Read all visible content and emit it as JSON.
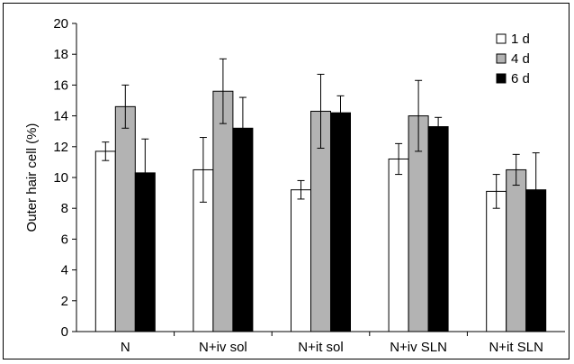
{
  "chart_data": {
    "type": "bar",
    "categories": [
      "N",
      "N+iv sol",
      "N+it sol",
      "N+iv SLN",
      "N+it SLN"
    ],
    "series": [
      {
        "name": "1 d",
        "color": "#ffffff",
        "values": [
          11.7,
          10.5,
          9.2,
          11.2,
          9.1
        ],
        "errors": [
          0.6,
          2.1,
          0.6,
          1.0,
          1.1
        ]
      },
      {
        "name": "4 d",
        "color": "#b3b3b3",
        "values": [
          14.6,
          15.6,
          14.3,
          14.0,
          10.5
        ],
        "errors": [
          1.4,
          2.1,
          2.4,
          2.3,
          1.0
        ]
      },
      {
        "name": "6 d",
        "color": "#000000",
        "values": [
          10.3,
          13.2,
          14.2,
          13.3,
          9.2
        ],
        "errors": [
          2.2,
          2.0,
          1.1,
          0.6,
          2.4
        ]
      }
    ],
    "ylabel": "Outer hair cell (%)",
    "xlabel": "",
    "ylim": [
      0,
      20
    ],
    "yticks": [
      0,
      2,
      4,
      6,
      8,
      10,
      12,
      14,
      16,
      18,
      20
    ],
    "legend_position": "top-right",
    "grid": false
  }
}
